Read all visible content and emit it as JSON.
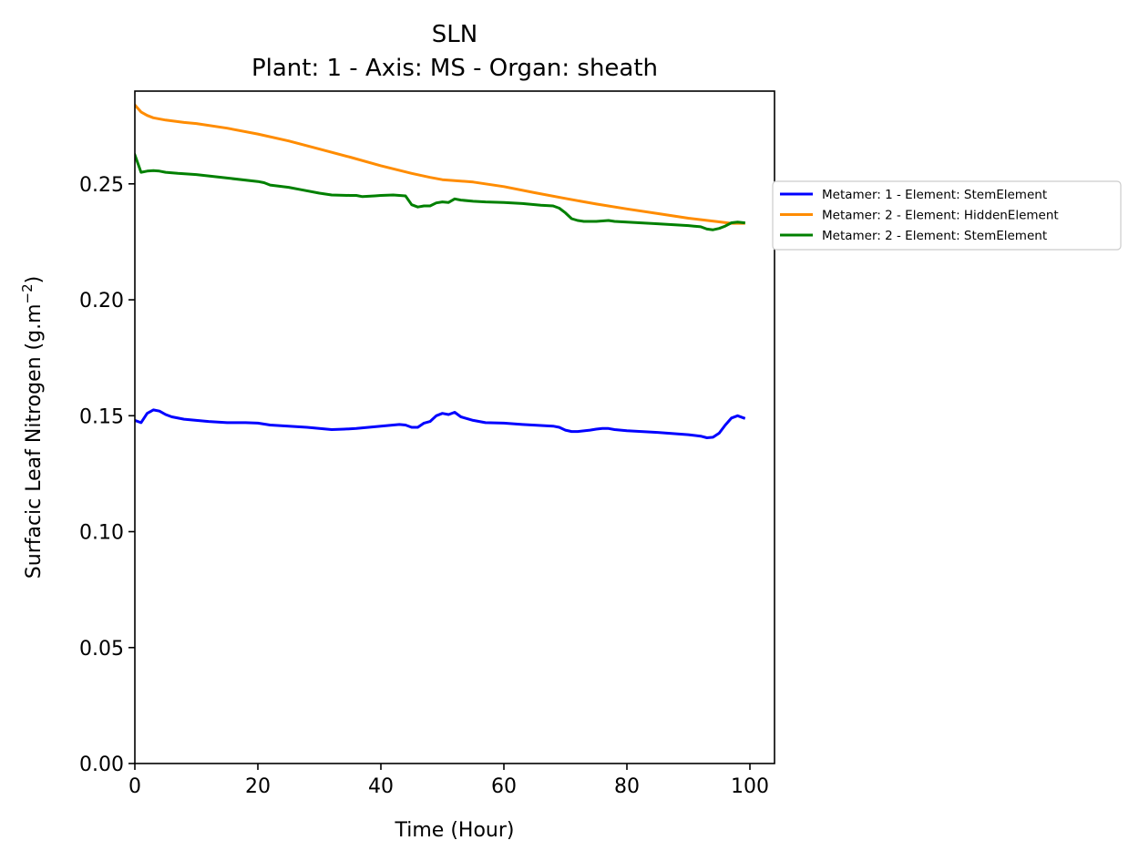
{
  "chart_data": {
    "type": "line",
    "title": "SLN",
    "subtitle": "Plant: 1 - Axis: MS - Organ: sheath",
    "xlabel": "Time (Hour)",
    "ylabel_main": "Surfacic Leaf Nitrogen (g.m",
    "ylabel_sup": "−2",
    "ylabel_end": ")",
    "xlim": [
      0,
      104
    ],
    "ylim": [
      0,
      0.29
    ],
    "x_ticks": [
      0,
      20,
      40,
      60,
      80,
      100
    ],
    "x_tick_labels": [
      "0",
      "20",
      "40",
      "60",
      "80",
      "100"
    ],
    "y_ticks": [
      0,
      0.05,
      0.1,
      0.15,
      0.2,
      0.25
    ],
    "y_tick_labels": [
      "0.00",
      "0.05",
      "0.10",
      "0.15",
      "0.20",
      "0.25"
    ],
    "grid": false,
    "legend_position": "outside-right",
    "series": [
      {
        "name": "Metamer: 1 - Element: StemElement",
        "color": "#0000ff",
        "points": [
          [
            0,
            0.148
          ],
          [
            1,
            0.147
          ],
          [
            2,
            0.151
          ],
          [
            3,
            0.1525
          ],
          [
            4,
            0.152
          ],
          [
            5,
            0.1505
          ],
          [
            6,
            0.1495
          ],
          [
            8,
            0.1485
          ],
          [
            10,
            0.148
          ],
          [
            12,
            0.1475
          ],
          [
            15,
            0.147
          ],
          [
            18,
            0.147
          ],
          [
            20,
            0.1468
          ],
          [
            22,
            0.146
          ],
          [
            25,
            0.1455
          ],
          [
            28,
            0.145
          ],
          [
            30,
            0.1445
          ],
          [
            32,
            0.144
          ],
          [
            34,
            0.1442
          ],
          [
            36,
            0.1445
          ],
          [
            38,
            0.145
          ],
          [
            40,
            0.1455
          ],
          [
            42,
            0.146
          ],
          [
            43,
            0.1462
          ],
          [
            44,
            0.146
          ],
          [
            45,
            0.145
          ],
          [
            46,
            0.145
          ],
          [
            47,
            0.1468
          ],
          [
            48,
            0.1475
          ],
          [
            49,
            0.15
          ],
          [
            50,
            0.151
          ],
          [
            51,
            0.1505
          ],
          [
            52,
            0.1515
          ],
          [
            53,
            0.1495
          ],
          [
            55,
            0.148
          ],
          [
            57,
            0.147
          ],
          [
            60,
            0.1468
          ],
          [
            63,
            0.1462
          ],
          [
            66,
            0.1458
          ],
          [
            68,
            0.1455
          ],
          [
            69,
            0.145
          ],
          [
            70,
            0.1438
          ],
          [
            71,
            0.1432
          ],
          [
            72,
            0.1432
          ],
          [
            74,
            0.1438
          ],
          [
            75,
            0.1442
          ],
          [
            76,
            0.1445
          ],
          [
            77,
            0.1445
          ],
          [
            78,
            0.144
          ],
          [
            80,
            0.1435
          ],
          [
            85,
            0.1428
          ],
          [
            90,
            0.1418
          ],
          [
            92,
            0.1412
          ],
          [
            93,
            0.1405
          ],
          [
            94,
            0.1407
          ],
          [
            95,
            0.1425
          ],
          [
            96,
            0.146
          ],
          [
            97,
            0.149
          ],
          [
            98,
            0.15
          ],
          [
            99,
            0.149
          ]
        ]
      },
      {
        "name": "Metamer: 2 - Element: HiddenElement",
        "color": "#ff8c00",
        "points": [
          [
            0,
            0.284
          ],
          [
            1,
            0.281
          ],
          [
            2,
            0.2795
          ],
          [
            3,
            0.2785
          ],
          [
            5,
            0.2775
          ],
          [
            8,
            0.2765
          ],
          [
            10,
            0.276
          ],
          [
            15,
            0.274
          ],
          [
            20,
            0.2715
          ],
          [
            25,
            0.2685
          ],
          [
            30,
            0.265
          ],
          [
            35,
            0.2615
          ],
          [
            40,
            0.2578
          ],
          [
            45,
            0.2545
          ],
          [
            48,
            0.2528
          ],
          [
            50,
            0.2518
          ],
          [
            55,
            0.2508
          ],
          [
            60,
            0.2488
          ],
          [
            65,
            0.2462
          ],
          [
            70,
            0.2437
          ],
          [
            75,
            0.2413
          ],
          [
            80,
            0.2392
          ],
          [
            85,
            0.2372
          ],
          [
            90,
            0.2352
          ],
          [
            95,
            0.2336
          ],
          [
            97,
            0.233
          ],
          [
            99,
            0.233
          ]
        ]
      },
      {
        "name": "Metamer: 2 - Element: StemElement",
        "color": "#008000",
        "points": [
          [
            0,
            0.2625
          ],
          [
            1,
            0.255
          ],
          [
            2,
            0.2555
          ],
          [
            3,
            0.2557
          ],
          [
            4,
            0.2555
          ],
          [
            5,
            0.255
          ],
          [
            7,
            0.2545
          ],
          [
            10,
            0.254
          ],
          [
            15,
            0.2525
          ],
          [
            20,
            0.251
          ],
          [
            21,
            0.2505
          ],
          [
            22,
            0.2495
          ],
          [
            25,
            0.2485
          ],
          [
            27,
            0.2475
          ],
          [
            30,
            0.246
          ],
          [
            32,
            0.2452
          ],
          [
            35,
            0.245
          ],
          [
            36,
            0.245
          ],
          [
            37,
            0.2445
          ],
          [
            39,
            0.2448
          ],
          [
            40,
            0.245
          ],
          [
            42,
            0.2452
          ],
          [
            43,
            0.245
          ],
          [
            44,
            0.2448
          ],
          [
            45,
            0.241
          ],
          [
            46,
            0.24
          ],
          [
            47,
            0.2405
          ],
          [
            48,
            0.2405
          ],
          [
            49,
            0.2418
          ],
          [
            50,
            0.2422
          ],
          [
            51,
            0.242
          ],
          [
            52,
            0.2435
          ],
          [
            53,
            0.243
          ],
          [
            55,
            0.2425
          ],
          [
            57,
            0.2422
          ],
          [
            60,
            0.242
          ],
          [
            63,
            0.2415
          ],
          [
            66,
            0.2408
          ],
          [
            68,
            0.2405
          ],
          [
            69,
            0.2395
          ],
          [
            70,
            0.2375
          ],
          [
            71,
            0.235
          ],
          [
            72,
            0.2342
          ],
          [
            73,
            0.2338
          ],
          [
            75,
            0.2338
          ],
          [
            77,
            0.2342
          ],
          [
            78,
            0.2338
          ],
          [
            80,
            0.2335
          ],
          [
            85,
            0.2328
          ],
          [
            90,
            0.232
          ],
          [
            92,
            0.2315
          ],
          [
            93,
            0.2305
          ],
          [
            94,
            0.2302
          ],
          [
            95,
            0.2308
          ],
          [
            96,
            0.2318
          ],
          [
            97,
            0.2332
          ],
          [
            98,
            0.2335
          ],
          [
            99,
            0.2332
          ]
        ]
      }
    ]
  }
}
